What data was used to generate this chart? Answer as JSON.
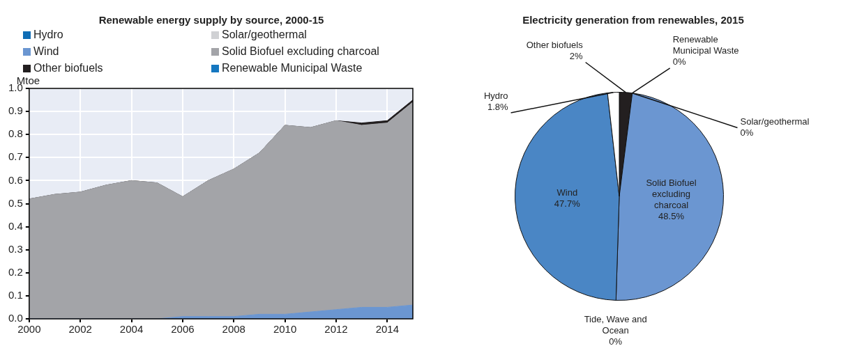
{
  "chart_data": [
    {
      "type": "area",
      "title": "Renewable energy supply by source, 2000-15",
      "ylabel": "Mtoe",
      "stacked": true,
      "x": [
        2000,
        2001,
        2002,
        2003,
        2004,
        2005,
        2006,
        2007,
        2008,
        2009,
        2010,
        2011,
        2012,
        2013,
        2014,
        2015
      ],
      "series": [
        {
          "name": "Hydro",
          "color": "#0f6db5",
          "values": [
            null,
            null,
            null,
            null,
            null,
            null,
            null,
            null,
            null,
            null,
            null,
            null,
            null,
            null,
            null,
            null
          ]
        },
        {
          "name": "Solar/geothermal",
          "color": "#d0d1d4",
          "values": [
            null,
            null,
            null,
            null,
            null,
            null,
            null,
            null,
            null,
            null,
            null,
            null,
            null,
            null,
            null,
            null
          ]
        },
        {
          "name": "Wind",
          "color": "#6b96d1",
          "values": [
            0,
            0,
            0,
            0,
            0,
            0,
            0.01,
            0.01,
            0.01,
            0.02,
            0.02,
            0.03,
            0.04,
            0.05,
            0.05,
            0.06
          ]
        },
        {
          "name": "Solid Biofuel excluding charcoal",
          "color": "#a3a4a8",
          "values": [
            0.52,
            0.54,
            0.55,
            0.58,
            0.6,
            0.59,
            0.52,
            0.59,
            0.64,
            0.7,
            0.82,
            0.8,
            0.82,
            0.79,
            0.8,
            0.88
          ]
        },
        {
          "name": "Other biofuels",
          "color": "#231f20",
          "values": [
            0,
            0,
            0,
            0,
            0,
            0,
            0,
            0,
            0,
            0,
            0,
            0,
            0,
            0.01,
            0.01,
            0.01
          ]
        },
        {
          "name": "Renewable Municipal Waste",
          "color": "#1577c0",
          "values": [
            null,
            null,
            null,
            null,
            null,
            null,
            null,
            null,
            null,
            null,
            null,
            null,
            null,
            null,
            null,
            null
          ]
        }
      ],
      "xlim": [
        2000,
        2015
      ],
      "xticks": [
        2000,
        2002,
        2004,
        2006,
        2008,
        2010,
        2012,
        2014
      ],
      "ylim": [
        0,
        1
      ],
      "yticks": [
        {
          "value": 0,
          "label": "0.0"
        },
        {
          "value": 0.1,
          "label": "0.1"
        },
        {
          "value": 0.2,
          "label": "0.2"
        },
        {
          "value": 0.3,
          "label": "0.3"
        },
        {
          "value": 0.4,
          "label": "0.4"
        },
        {
          "value": 0.5,
          "label": "0.5"
        },
        {
          "value": 0.6,
          "label": "0.6"
        },
        {
          "value": 0.7,
          "label": "0.7"
        },
        {
          "value": 0.8,
          "label": "0.8"
        },
        {
          "value": 0.9,
          "label": "0.9"
        },
        {
          "value": 1,
          "label": "1.0"
        }
      ],
      "grid": true,
      "legend": "top"
    },
    {
      "type": "pie",
      "title": "Electricity generation from renewables, 2015",
      "categories": [
        "Other biofuels",
        "Renewable Municipal Waste",
        "Solar/geothermal",
        "Solid Biofuel excluding charcoal",
        "Tide, Wave and Ocean",
        "Wind",
        "Hydro"
      ],
      "values": [
        2,
        0,
        0,
        48.5,
        0,
        47.7,
        1.8
      ],
      "colors": [
        "#231f20",
        "#1577c0",
        "#d0d1d4",
        "#6b96d1",
        "#2f6fb0",
        "#4a86c5",
        "#ffffff"
      ],
      "value_labels": [
        "2%",
        "0%",
        "0%",
        "48.5%",
        "0%",
        "47.7%",
        "1.8%"
      ]
    }
  ]
}
